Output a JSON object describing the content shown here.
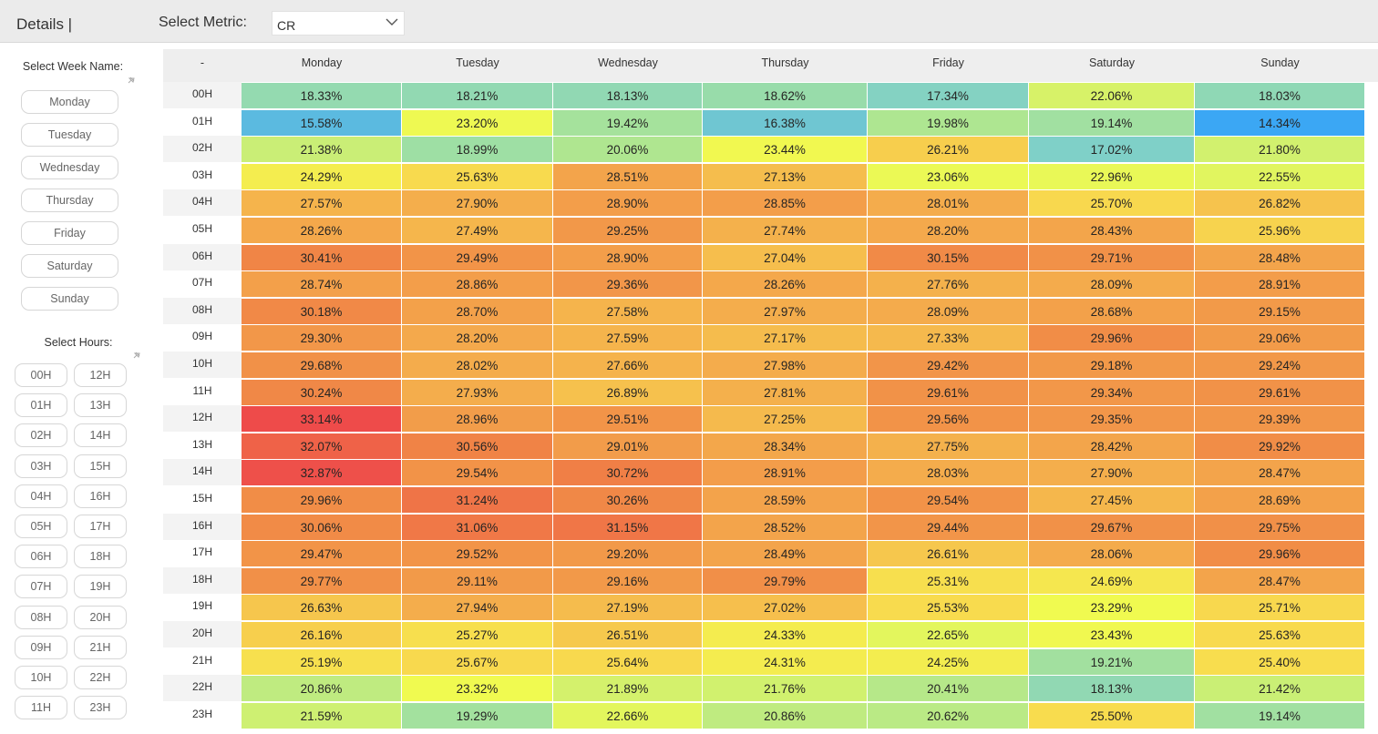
{
  "header": {
    "title": "Details |",
    "metric_label": "Select Metric:",
    "metric_value": "CR"
  },
  "week_slicer": {
    "label": "Select Week Name:",
    "items": [
      "Monday",
      "Tuesday",
      "Wednesday",
      "Thursday",
      "Friday",
      "Saturday",
      "Sunday"
    ]
  },
  "hours_slicer": {
    "label": "Select Hours:",
    "items": [
      "00H",
      "12H",
      "01H",
      "13H",
      "02H",
      "14H",
      "03H",
      "15H",
      "04H",
      "16H",
      "05H",
      "17H",
      "06H",
      "18H",
      "07H",
      "19H",
      "08H",
      "20H",
      "09H",
      "21H",
      "10H",
      "22H",
      "11H",
      "23H"
    ]
  },
  "matrix": {
    "corner": "-",
    "columns": [
      "Monday",
      "Tuesday",
      "Wednesday",
      "Thursday",
      "Friday",
      "Saturday",
      "Sunday"
    ],
    "rows": [
      "00H",
      "01H",
      "02H",
      "03H",
      "04H",
      "05H",
      "06H",
      "07H",
      "08H",
      "09H",
      "10H",
      "11H",
      "12H",
      "13H",
      "14H",
      "15H",
      "16H",
      "17H",
      "18H",
      "19H",
      "20H",
      "21H",
      "22H",
      "23H"
    ],
    "values": [
      [
        "18.33%",
        "18.21%",
        "18.13%",
        "18.62%",
        "17.34%",
        "22.06%",
        "18.03%"
      ],
      [
        "15.58%",
        "23.20%",
        "19.42%",
        "16.38%",
        "19.98%",
        "19.14%",
        "14.34%"
      ],
      [
        "21.38%",
        "18.99%",
        "20.06%",
        "23.44%",
        "26.21%",
        "17.02%",
        "21.80%"
      ],
      [
        "24.29%",
        "25.63%",
        "28.51%",
        "27.13%",
        "23.06%",
        "22.96%",
        "22.55%"
      ],
      [
        "27.57%",
        "27.90%",
        "28.90%",
        "28.85%",
        "28.01%",
        "25.70%",
        "26.82%"
      ],
      [
        "28.26%",
        "27.49%",
        "29.25%",
        "27.74%",
        "28.20%",
        "28.43%",
        "25.96%"
      ],
      [
        "30.41%",
        "29.49%",
        "28.90%",
        "27.04%",
        "30.15%",
        "29.71%",
        "28.48%"
      ],
      [
        "28.74%",
        "28.86%",
        "29.36%",
        "28.26%",
        "27.76%",
        "28.09%",
        "28.91%"
      ],
      [
        "30.18%",
        "28.70%",
        "27.58%",
        "27.97%",
        "28.09%",
        "28.68%",
        "29.15%"
      ],
      [
        "29.30%",
        "28.20%",
        "27.59%",
        "27.17%",
        "27.33%",
        "29.96%",
        "29.06%"
      ],
      [
        "29.68%",
        "28.02%",
        "27.66%",
        "27.98%",
        "29.42%",
        "29.18%",
        "29.24%"
      ],
      [
        "30.24%",
        "27.93%",
        "26.89%",
        "27.81%",
        "29.61%",
        "29.34%",
        "29.61%"
      ],
      [
        "33.14%",
        "28.96%",
        "29.51%",
        "27.25%",
        "29.56%",
        "29.35%",
        "29.39%"
      ],
      [
        "32.07%",
        "30.56%",
        "29.01%",
        "28.34%",
        "27.75%",
        "28.42%",
        "29.92%"
      ],
      [
        "32.87%",
        "29.54%",
        "30.72%",
        "28.91%",
        "28.03%",
        "27.90%",
        "28.47%"
      ],
      [
        "29.96%",
        "31.24%",
        "30.26%",
        "28.59%",
        "29.54%",
        "27.45%",
        "28.69%"
      ],
      [
        "30.06%",
        "31.06%",
        "31.15%",
        "28.52%",
        "29.44%",
        "29.67%",
        "29.75%"
      ],
      [
        "29.47%",
        "29.52%",
        "29.20%",
        "28.49%",
        "26.61%",
        "28.06%",
        "29.96%"
      ],
      [
        "29.77%",
        "29.11%",
        "29.16%",
        "29.79%",
        "25.31%",
        "24.69%",
        "28.47%"
      ],
      [
        "26.63%",
        "27.94%",
        "27.19%",
        "27.02%",
        "25.53%",
        "23.29%",
        "25.71%"
      ],
      [
        "26.16%",
        "25.27%",
        "26.51%",
        "24.33%",
        "22.65%",
        "23.43%",
        "25.63%"
      ],
      [
        "25.19%",
        "25.67%",
        "25.64%",
        "24.31%",
        "24.25%",
        "19.21%",
        "25.40%"
      ],
      [
        "20.86%",
        "23.32%",
        "21.89%",
        "21.76%",
        "20.41%",
        "18.13%",
        "21.42%"
      ],
      [
        "21.59%",
        "19.29%",
        "22.66%",
        "20.86%",
        "20.62%",
        "25.50%",
        "19.14%"
      ]
    ],
    "color_scale": [
      {
        "value": 14.3,
        "color": "#3aa6f5"
      },
      {
        "value": 17.0,
        "color": "#7fd0c8"
      },
      {
        "value": 20.0,
        "color": "#aee691"
      },
      {
        "value": 23.3,
        "color": "#f0fa50"
      },
      {
        "value": 25.5,
        "color": "#f8dc4e"
      },
      {
        "value": 28.0,
        "color": "#f4ac4c"
      },
      {
        "value": 30.5,
        "color": "#f08446"
      },
      {
        "value": 33.1,
        "color": "#ee4b4a"
      }
    ]
  }
}
